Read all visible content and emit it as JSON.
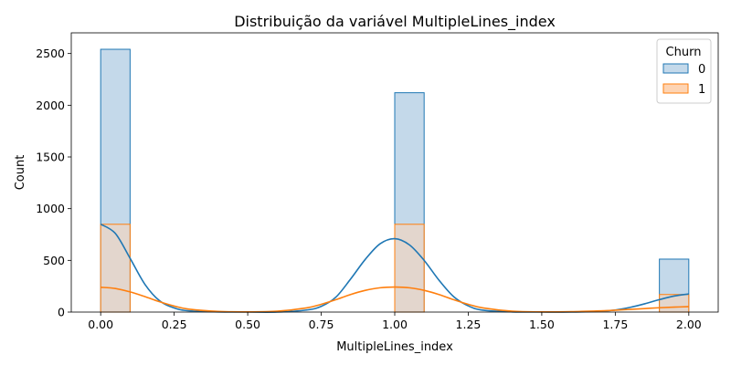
{
  "chart_data": {
    "type": "histogram",
    "title": "Distribuição da variável MultipleLines_index",
    "xlabel": "MultipleLines_index",
    "ylabel": "Count",
    "xlim": [
      -0.1,
      2.1
    ],
    "ylim": [
      0,
      2700
    ],
    "xticks": [
      0.0,
      0.25,
      0.5,
      0.75,
      1.0,
      1.25,
      1.5,
      1.75,
      2.0
    ],
    "xtick_labels": [
      "0.00",
      "0.25",
      "0.50",
      "0.75",
      "1.00",
      "1.25",
      "1.50",
      "1.75",
      "2.00"
    ],
    "yticks": [
      0,
      500,
      1000,
      1500,
      2000,
      2500
    ],
    "ytick_labels": [
      "0",
      "500",
      "1000",
      "1500",
      "2000",
      "2500"
    ],
    "grid": false,
    "legend": {
      "title": "Churn",
      "placement": "top-right"
    },
    "bins": [
      {
        "x0": 0.0,
        "x1": 0.1
      },
      {
        "x0": 1.0,
        "x1": 1.1
      },
      {
        "x0": 1.9,
        "x1": 2.0
      }
    ],
    "series": [
      {
        "name": "0",
        "values": [
          2541,
          2121,
          512
        ],
        "color": "#1f77b4",
        "fill": "#c4d9ea"
      },
      {
        "name": "1",
        "values": [
          849,
          849,
          170
        ],
        "color": "#ff7f0e",
        "fill": "#fdd4b4"
      }
    ],
    "kde": [
      {
        "series": "0",
        "color": "#1f77b4",
        "x": [
          0.0,
          0.05,
          0.1,
          0.15,
          0.2,
          0.25,
          0.3,
          0.4,
          0.5,
          0.6,
          0.7,
          0.75,
          0.8,
          0.85,
          0.9,
          0.95,
          1.0,
          1.05,
          1.1,
          1.15,
          1.2,
          1.25,
          1.3,
          1.4,
          1.5,
          1.6,
          1.7,
          1.75,
          1.8,
          1.85,
          1.9,
          1.95,
          2.0
        ],
        "y": [
          850,
          760,
          520,
          270,
          110,
          40,
          12,
          2,
          0,
          0,
          20,
          55,
          145,
          320,
          510,
          660,
          710,
          650,
          500,
          310,
          150,
          60,
          18,
          2,
          0,
          0,
          8,
          20,
          45,
          80,
          120,
          155,
          175
        ]
      },
      {
        "series": "1",
        "color": "#ff7f0e",
        "x": [
          0.0,
          0.05,
          0.1,
          0.15,
          0.2,
          0.25,
          0.3,
          0.4,
          0.5,
          0.6,
          0.7,
          0.75,
          0.8,
          0.85,
          0.9,
          0.95,
          1.0,
          1.05,
          1.1,
          1.15,
          1.2,
          1.25,
          1.3,
          1.4,
          1.5,
          1.6,
          1.7,
          1.75,
          1.8,
          1.85,
          1.9,
          1.95,
          2.0
        ],
        "y": [
          240,
          228,
          195,
          150,
          100,
          58,
          28,
          6,
          2,
          8,
          40,
          75,
          120,
          170,
          210,
          235,
          242,
          235,
          210,
          170,
          120,
          75,
          40,
          8,
          2,
          4,
          12,
          18,
          26,
          34,
          42,
          48,
          52
        ]
      }
    ]
  }
}
